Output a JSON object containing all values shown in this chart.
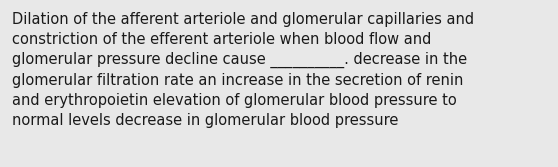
{
  "background_color": "#e8e8e8",
  "text_color": "#1a1a1a",
  "font_size": 10.5,
  "text": "Dilation of the afferent arteriole and glomerular capillaries and\nconstriction of the efferent arteriole when blood flow and\nglomerular pressure decline cause __________. decrease in the\nglomerular filtration rate an increase in the secretion of renin\nand erythropoietin elevation of glomerular blood pressure to\nnormal levels decrease in glomerular blood pressure",
  "fig_width": 5.58,
  "fig_height": 1.67,
  "dpi": 100
}
